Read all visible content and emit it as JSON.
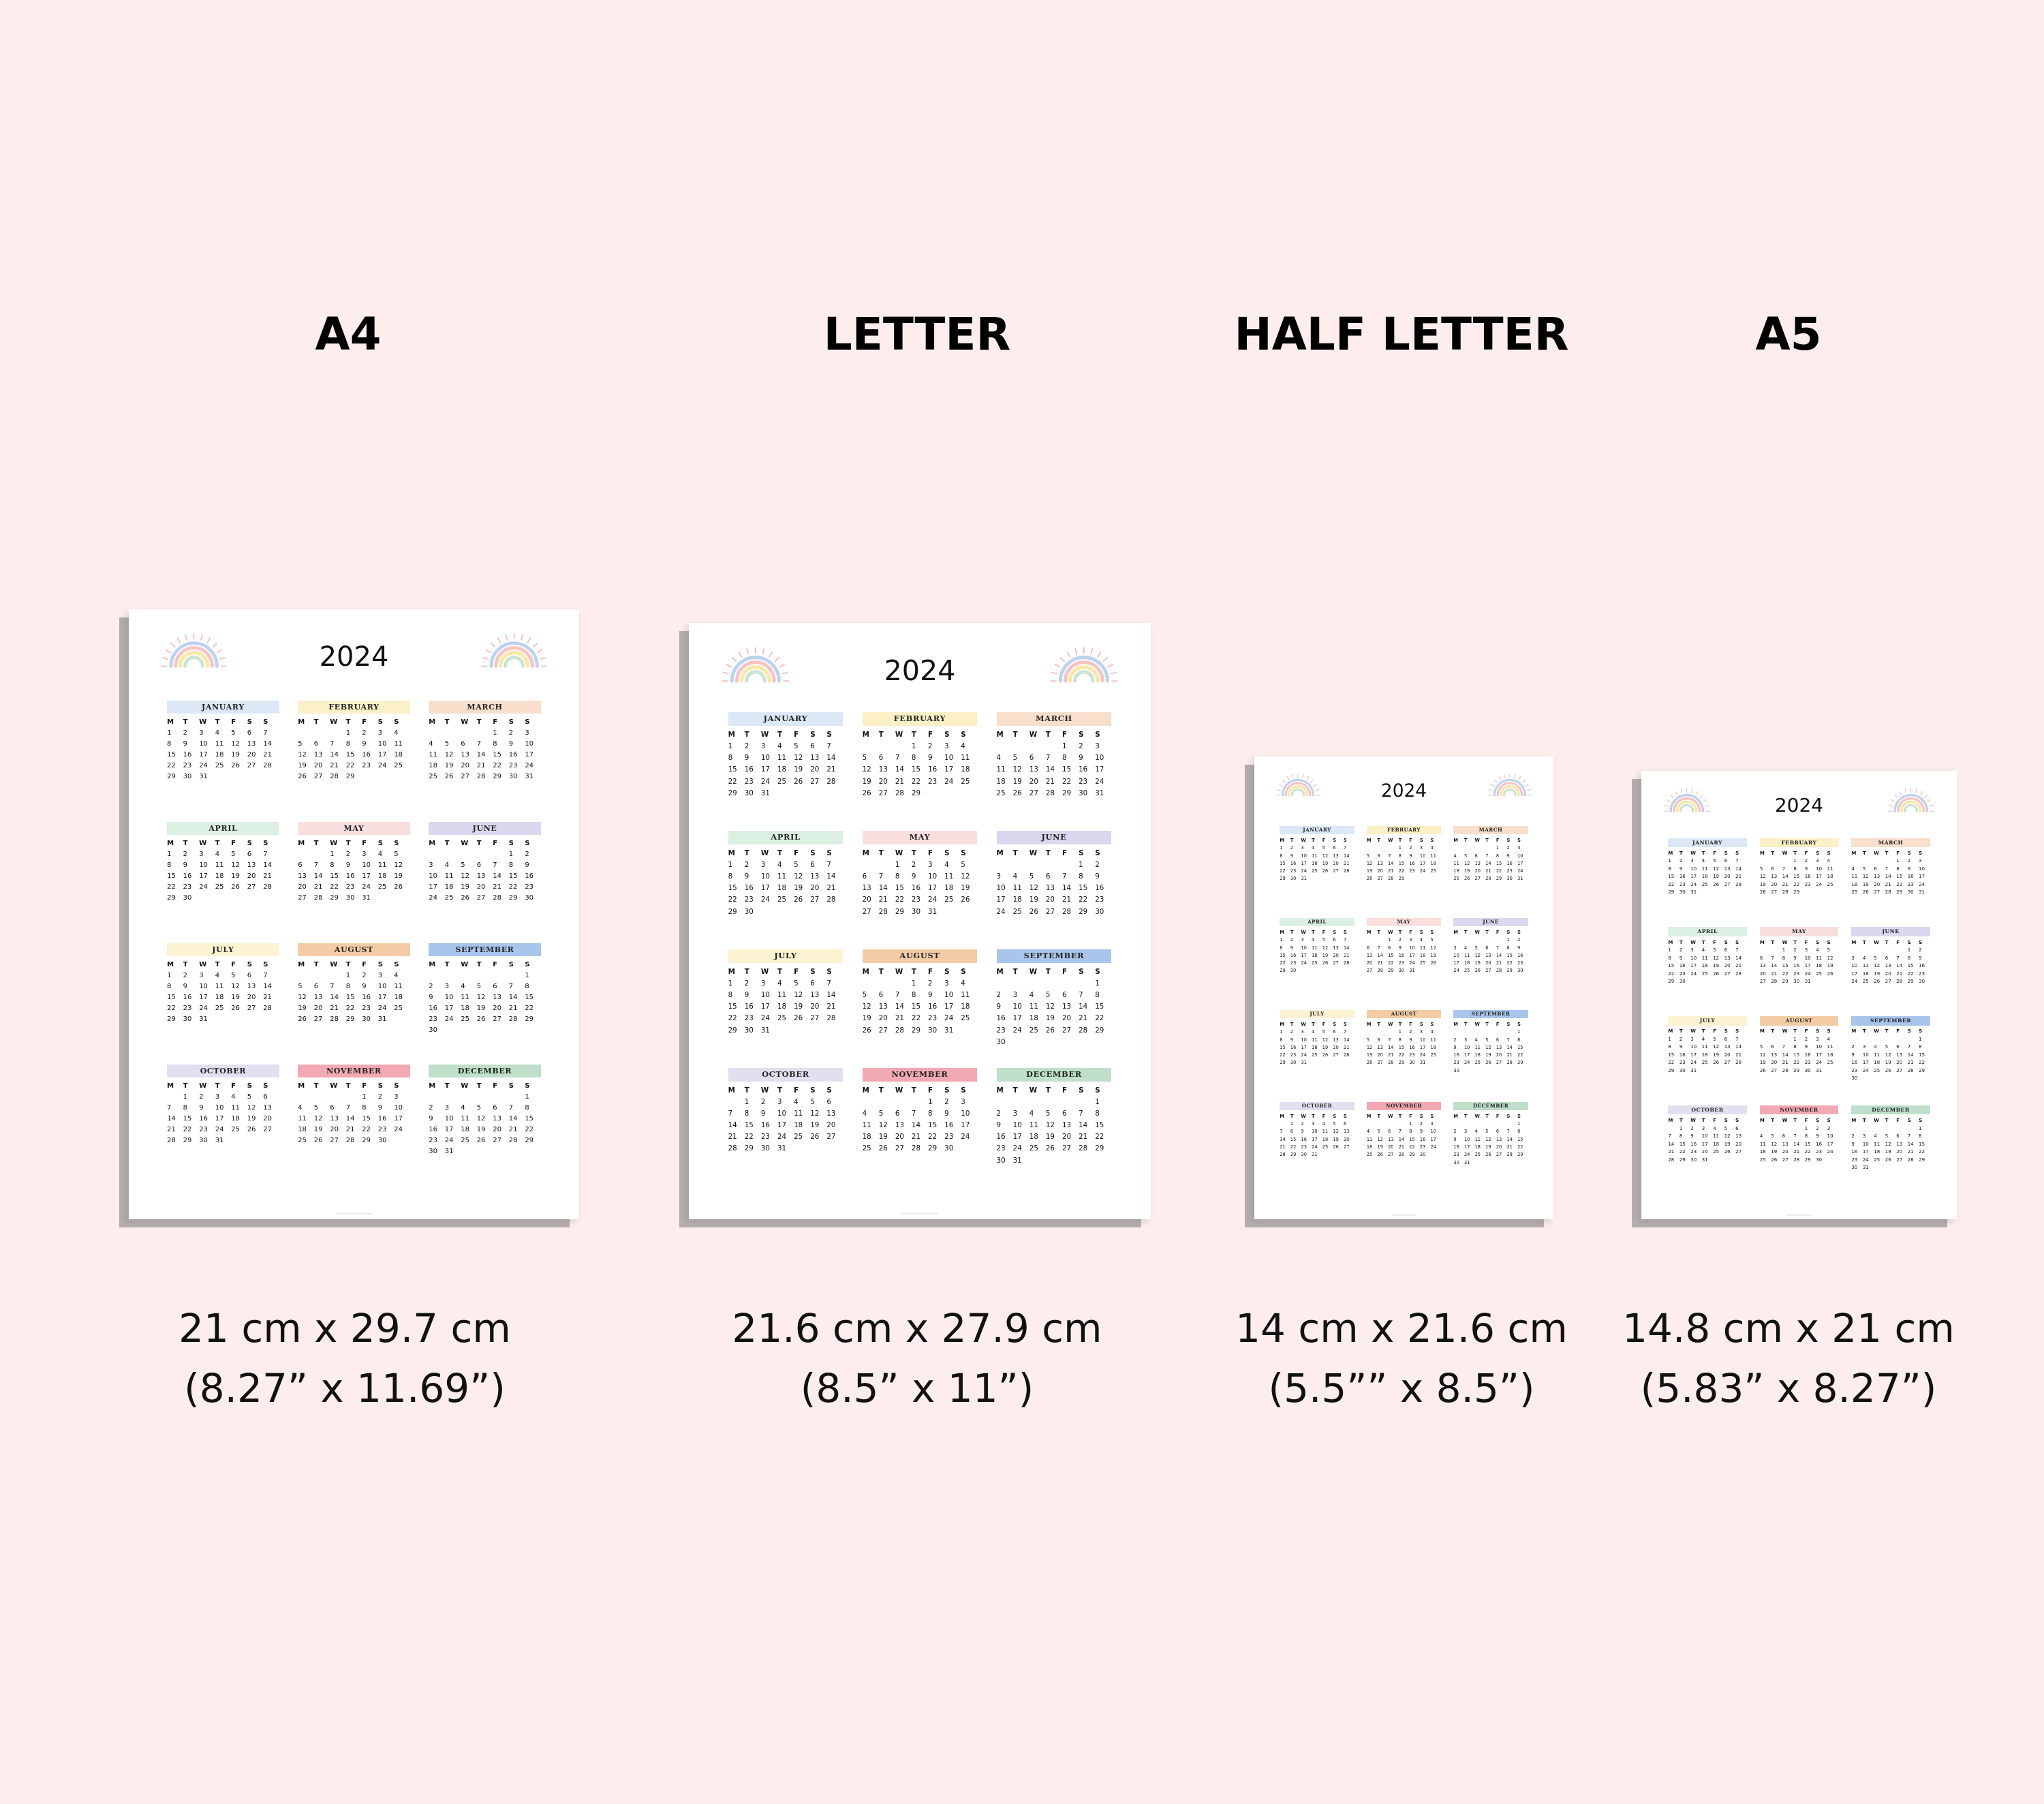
{
  "products": [
    {
      "id": "a4",
      "title": "A4",
      "dim_metric": "21 cm x 29.7 cm",
      "dim_imperial": "(8.27” x 11.69”)"
    },
    {
      "id": "letter",
      "title": "LETTER",
      "dim_metric": "21.6 cm x 27.9 cm",
      "dim_imperial": "(8.5” x 11”)"
    },
    {
      "id": "half-letter",
      "title": "HALF LETTER",
      "dim_metric": "14 cm x 21.6 cm",
      "dim_imperial": "(5.5”” x 8.5”)"
    },
    {
      "id": "a5",
      "title": "A5",
      "dim_metric": "14.8 cm x 21 cm",
      "dim_imperial": "(5.83” x 8.27”)"
    }
  ],
  "calendar": {
    "year": "2024",
    "weekday_labels": [
      "M",
      "T",
      "W",
      "T",
      "F",
      "S",
      "S"
    ],
    "months": [
      {
        "name": "JANUARY",
        "color": "#dce8f6",
        "offset": 0,
        "days": 31
      },
      {
        "name": "FEBRUARY",
        "color": "#fbf0c6",
        "offset": 3,
        "days": 29
      },
      {
        "name": "MARCH",
        "color": "#f8dfcb",
        "offset": 4,
        "days": 31
      },
      {
        "name": "APRIL",
        "color": "#dcefe3",
        "offset": 0,
        "days": 30
      },
      {
        "name": "MAY",
        "color": "#f9dede",
        "offset": 2,
        "days": 31
      },
      {
        "name": "JUNE",
        "color": "#dcd7ef",
        "offset": 5,
        "days": 30
      },
      {
        "name": "JULY",
        "color": "#fcf3d3",
        "offset": 0,
        "days": 31
      },
      {
        "name": "AUGUST",
        "color": "#f3cca6",
        "offset": 3,
        "days": 31
      },
      {
        "name": "SEPTEMBER",
        "color": "#a9c5ec",
        "offset": 6,
        "days": 30
      },
      {
        "name": "OCTOBER",
        "color": "#e2dff0",
        "offset": 1,
        "days": 31
      },
      {
        "name": "NOVEMBER",
        "color": "#f3a9b3",
        "offset": 4,
        "days": 30
      },
      {
        "name": "DECEMBER",
        "color": "#bfdfcb",
        "offset": 6,
        "days": 31
      }
    ],
    "rainbow_colors": [
      "#bcd3ef",
      "#f6c4c4",
      "#fbe6a6",
      "#c8e6d2"
    ],
    "ray_color": "#f0b8b8"
  }
}
